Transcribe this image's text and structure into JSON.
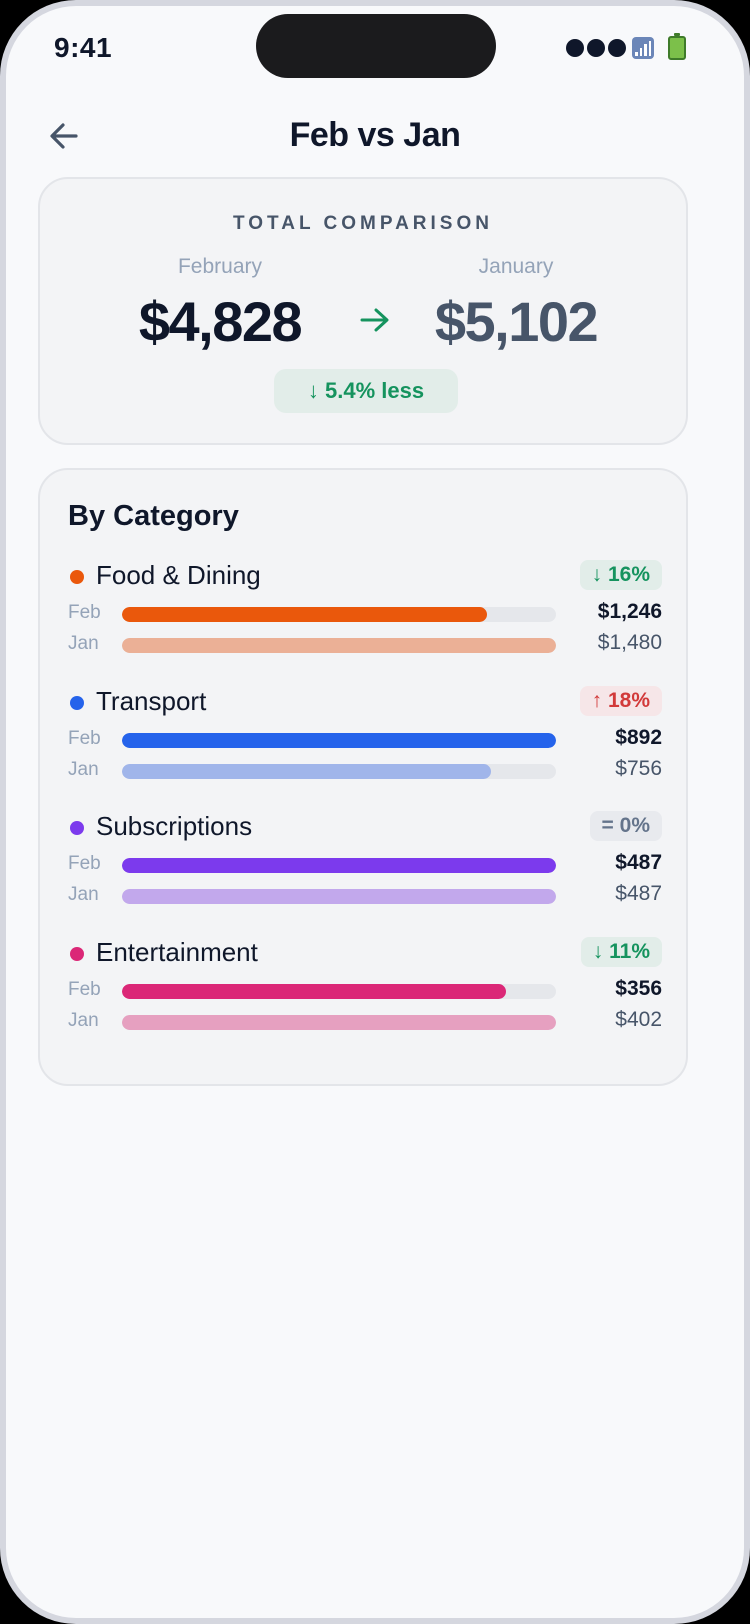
{
  "status_bar": {
    "time": "9:41"
  },
  "header": {
    "title": "Feb vs Jan"
  },
  "total": {
    "heading": "TOTAL COMPARISON",
    "current_label": "February",
    "current_amount": "$4,828",
    "previous_label": "January",
    "previous_amount": "$5,102",
    "delta_text": "↓ 5.4% less"
  },
  "categories_section": {
    "heading": "By Category",
    "feb_label": "Feb",
    "jan_label": "Jan",
    "items": [
      {
        "name": "Food & Dining",
        "badge": "↓ 16%",
        "trend": "down",
        "color": "#ea580c",
        "light_color": "#ebb096",
        "feb_value": "$1,246",
        "jan_value": "$1,480",
        "feb_fraction": 0.84,
        "jan_fraction": 1.0
      },
      {
        "name": "Transport",
        "badge": "↑ 18%",
        "trend": "up",
        "color": "#2563eb",
        "light_color": "#a0b5ea",
        "feb_value": "$892",
        "jan_value": "$756",
        "feb_fraction": 1.0,
        "jan_fraction": 0.85
      },
      {
        "name": "Subscriptions",
        "badge": "= 0%",
        "trend": "flat",
        "color": "#7c3aed",
        "light_color": "#c2a8ec",
        "feb_value": "$487",
        "jan_value": "$487",
        "feb_fraction": 1.0,
        "jan_fraction": 1.0
      },
      {
        "name": "Entertainment",
        "badge": "↓ 11%",
        "trend": "down",
        "color": "#db2777",
        "light_color": "#e6a0c0",
        "feb_value": "$356",
        "jan_value": "$402",
        "feb_fraction": 0.885,
        "jan_fraction": 1.0
      }
    ]
  },
  "colors": {
    "accent_green": "#15935e",
    "accent_red": "#d23a3a",
    "text_primary": "#0f172a"
  }
}
